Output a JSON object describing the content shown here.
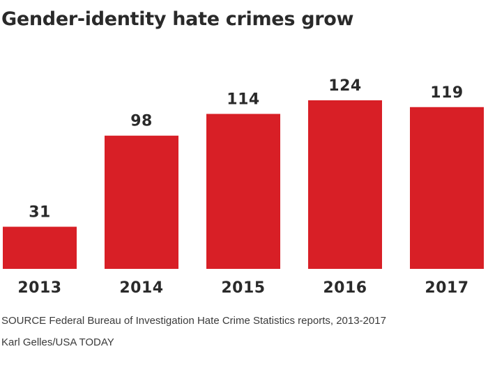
{
  "title": "Gender-identity hate crimes grow",
  "source": "SOURCE Federal Bureau of Investigation Hate Crime Statistics reports, 2013-2017",
  "credit": "Karl Gelles/USA TODAY",
  "colors": {
    "bar": "#d81f26",
    "text": "#2a2a2a"
  },
  "chart_data": {
    "type": "bar",
    "title": "Gender-identity hate crimes grow",
    "categories": [
      "2013",
      "2014",
      "2015",
      "2016",
      "2017"
    ],
    "values": [
      31,
      98,
      114,
      124,
      119
    ],
    "xlabel": "",
    "ylabel": "",
    "ylim": [
      0,
      124
    ],
    "grid": false,
    "legend": "none",
    "data_labels": true
  }
}
